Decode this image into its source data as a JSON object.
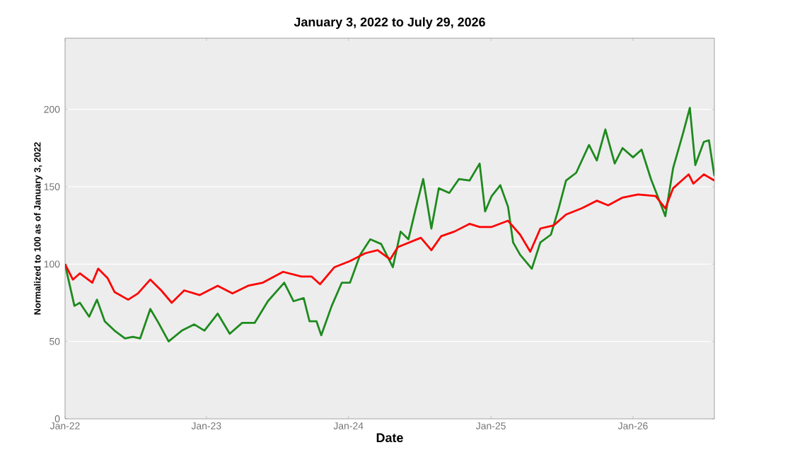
{
  "chart_data": {
    "type": "line",
    "title": "January 3, 2022 to July 29, 2026",
    "xlabel": "Date",
    "ylabel": "Normalized to 100 as of January 3, 2022",
    "xlim": [
      "2022-01-03",
      "2026-07-29"
    ],
    "ylim": [
      0,
      246
    ],
    "xticks": [
      {
        "value": "2022-01-03",
        "label": "Jan-22"
      },
      {
        "value": "2023-01-01",
        "label": "Jan-23"
      },
      {
        "value": "2024-01-01",
        "label": "Jan-24"
      },
      {
        "value": "2025-01-01",
        "label": "Jan-25"
      },
      {
        "value": "2026-01-01",
        "label": "Jan-26"
      }
    ],
    "yticks": [
      0,
      50,
      100,
      150,
      200
    ],
    "grid": "y",
    "line_style": "solid",
    "series": [
      {
        "color": "#1e8a1e",
        "x": [
          "2022-01-03",
          "2022-01-09",
          "2022-01-27",
          "2022-02-10",
          "2022-03-06",
          "2022-03-26",
          "2022-04-15",
          "2022-05-10",
          "2022-06-06",
          "2022-06-26",
          "2022-07-15",
          "2022-08-10",
          "2022-08-31",
          "2022-09-26",
          "2022-10-30",
          "2022-12-01",
          "2022-12-27",
          "2023-01-30",
          "2023-03-02",
          "2023-04-03",
          "2023-05-05",
          "2023-06-08",
          "2023-07-20",
          "2023-08-13",
          "2023-09-08",
          "2023-09-23",
          "2023-10-11",
          "2023-10-23",
          "2023-11-19",
          "2023-12-15",
          "2024-01-05",
          "2024-01-31",
          "2024-02-26",
          "2024-03-25",
          "2024-04-24",
          "2024-05-14",
          "2024-06-03",
          "2024-06-22",
          "2024-07-11",
          "2024-08-01",
          "2024-08-20",
          "2024-09-16",
          "2024-10-11",
          "2024-11-07",
          "2024-12-03",
          "2024-12-17",
          "2025-01-03",
          "2025-01-25",
          "2025-02-14",
          "2025-02-27",
          "2025-03-17",
          "2025-04-16",
          "2025-05-08",
          "2025-06-04",
          "2025-06-24",
          "2025-07-13",
          "2025-08-08",
          "2025-09-10",
          "2025-09-30",
          "2025-10-22",
          "2025-11-15",
          "2025-12-05",
          "2026-01-01",
          "2026-01-23",
          "2026-02-16",
          "2026-03-05",
          "2026-03-25",
          "2026-04-14",
          "2026-05-10",
          "2026-05-27",
          "2026-06-10",
          "2026-07-02",
          "2026-07-15",
          "2026-07-29"
        ],
        "values": [
          100,
          93,
          73,
          75,
          66,
          77,
          63,
          57,
          52,
          53,
          52,
          71,
          62,
          50,
          57,
          61,
          57,
          68,
          55,
          62,
          62,
          76,
          88,
          76,
          78,
          63,
          63,
          54,
          73,
          88,
          88,
          106,
          116,
          113,
          98,
          121,
          116,
          136,
          155,
          123,
          149,
          146,
          155,
          154,
          165,
          134,
          144,
          151,
          137,
          114,
          106,
          97,
          114,
          119,
          136,
          154,
          159,
          177,
          167,
          187,
          165,
          175,
          169,
          174,
          155,
          144,
          131,
          162,
          185,
          201,
          164,
          179,
          180,
          157
        ]
      },
      {
        "color": "#ff0000",
        "x": [
          "2022-01-03",
          "2022-01-23",
          "2022-02-10",
          "2022-03-14",
          "2022-03-29",
          "2022-04-22",
          "2022-05-10",
          "2022-06-14",
          "2022-07-09",
          "2022-08-10",
          "2022-09-07",
          "2022-10-04",
          "2022-11-05",
          "2022-12-15",
          "2023-01-30",
          "2023-03-09",
          "2023-04-18",
          "2023-05-26",
          "2023-07-17",
          "2023-09-02",
          "2023-09-28",
          "2023-10-20",
          "2023-11-26",
          "2024-01-05",
          "2024-02-13",
          "2024-03-16",
          "2024-04-17",
          "2024-05-07",
          "2024-07-05",
          "2024-08-01",
          "2024-08-26",
          "2024-09-29",
          "2024-11-07",
          "2024-12-03",
          "2025-01-03",
          "2025-02-14",
          "2025-03-17",
          "2025-04-12",
          "2025-05-08",
          "2025-06-11",
          "2025-07-13",
          "2025-08-22",
          "2025-09-30",
          "2025-10-29",
          "2025-12-05",
          "2026-01-14",
          "2026-02-28",
          "2026-03-25",
          "2026-04-14",
          "2026-05-24",
          "2026-06-05",
          "2026-07-02",
          "2026-07-29"
        ],
        "values": [
          100,
          90,
          94,
          88,
          97,
          91,
          82,
          77,
          81,
          90,
          83,
          75,
          83,
          80,
          86,
          81,
          86,
          88,
          95,
          92,
          92,
          87,
          98,
          102,
          107,
          109,
          103,
          111,
          117,
          109,
          118,
          121,
          126,
          124,
          124,
          128,
          119,
          108,
          123,
          125,
          132,
          136,
          141,
          138,
          143,
          145,
          144,
          136,
          149,
          158,
          152,
          158,
          154
        ]
      }
    ]
  }
}
